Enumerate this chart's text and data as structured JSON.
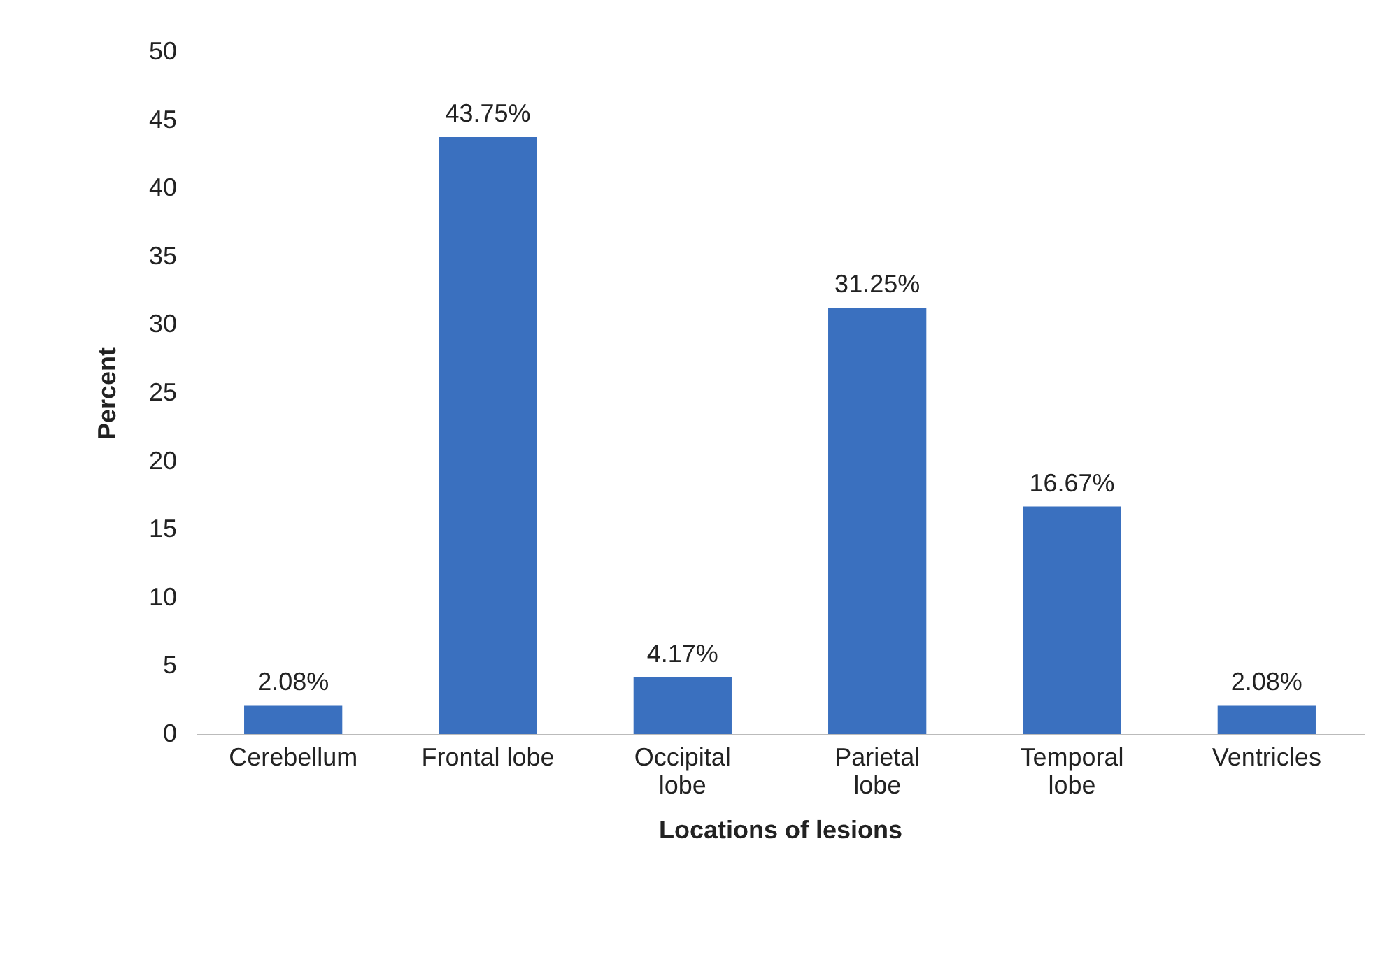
{
  "chart_data": {
    "type": "bar",
    "xlabel": "Locations of lesions",
    "ylabel": "Percent",
    "categories": [
      "Cerebellum",
      "Frontal lobe",
      "Occipital lobe",
      "Parietal lobe",
      "Temporal lobe",
      "Ventricles"
    ],
    "values": [
      2.08,
      43.75,
      4.17,
      31.25,
      16.67,
      2.08
    ],
    "value_labels": [
      "2.08%",
      "43.75%",
      "4.17%",
      "31.25%",
      "16.67%",
      "2.08%"
    ],
    "color": "#3a70bf",
    "ylim": [
      0,
      50
    ],
    "yticks": [
      0,
      5,
      10,
      15,
      20,
      25,
      30,
      35,
      40,
      45,
      50
    ],
    "grid": false
  }
}
